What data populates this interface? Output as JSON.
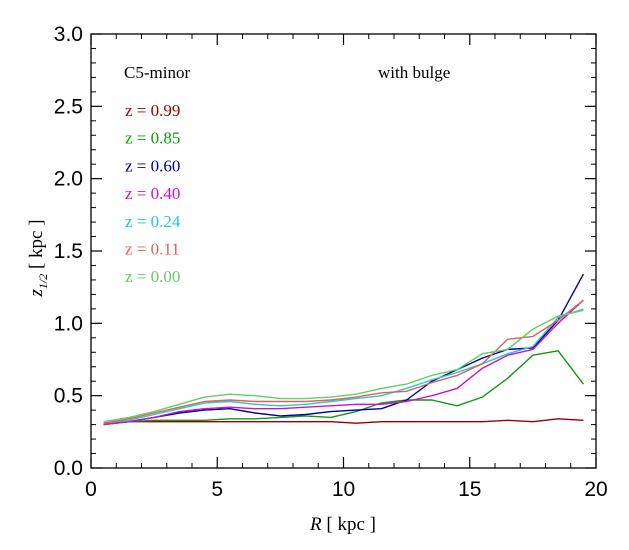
{
  "chart_data": {
    "type": "line",
    "annotations": {
      "left": "C5-minor",
      "right": "with bulge"
    },
    "xlabel": {
      "italic": "R",
      "rest": " [ kpc ]"
    },
    "ylabel": {
      "italic": "z",
      "sub": "1/2",
      "rest": "  [ kpc ]"
    },
    "xlim": [
      0,
      20
    ],
    "ylim": [
      0,
      3
    ],
    "xticks": [
      0,
      5,
      10,
      15,
      20
    ],
    "yticks": [
      0.0,
      0.5,
      1.0,
      1.5,
      2.0,
      2.5,
      3.0
    ],
    "grid": false,
    "legend_placement": "upper-left",
    "x": [
      0.5,
      1.5,
      2.5,
      3.5,
      4.5,
      5.5,
      6.5,
      7.5,
      8.5,
      9.5,
      10.5,
      11.5,
      12.5,
      13.5,
      14.5,
      15.5,
      16.5,
      17.5,
      18.5,
      19.5
    ],
    "series": [
      {
        "label": "z =  0.99",
        "color": "#990000",
        "values": [
          0.31,
          0.32,
          0.32,
          0.32,
          0.32,
          0.32,
          0.32,
          0.32,
          0.32,
          0.32,
          0.31,
          0.32,
          0.32,
          0.32,
          0.32,
          0.32,
          0.33,
          0.32,
          0.34,
          0.33
        ]
      },
      {
        "label": "z =  0.85",
        "color": "#119911",
        "values": [
          0.31,
          0.32,
          0.33,
          0.33,
          0.33,
          0.34,
          0.34,
          0.35,
          0.36,
          0.35,
          0.39,
          0.45,
          0.47,
          0.47,
          0.43,
          0.49,
          0.62,
          0.78,
          0.81,
          0.58
        ]
      },
      {
        "label": "z =  0.60",
        "color": "#000099",
        "values": [
          0.3,
          0.32,
          0.35,
          0.38,
          0.4,
          0.41,
          0.38,
          0.36,
          0.37,
          0.39,
          0.4,
          0.41,
          0.47,
          0.6,
          0.68,
          0.76,
          0.82,
          0.83,
          1.02,
          1.34
        ]
      },
      {
        "label": "z =  0.40",
        "color": "#cc11cc",
        "values": [
          0.3,
          0.32,
          0.35,
          0.39,
          0.41,
          0.42,
          0.41,
          0.41,
          0.42,
          0.43,
          0.44,
          0.44,
          0.46,
          0.5,
          0.55,
          0.69,
          0.78,
          0.82,
          1.0,
          1.16
        ]
      },
      {
        "label": "z =  0.24",
        "color": "#22cccc",
        "values": [
          0.31,
          0.33,
          0.37,
          0.41,
          0.45,
          0.46,
          0.44,
          0.43,
          0.44,
          0.46,
          0.48,
          0.5,
          0.55,
          0.61,
          0.66,
          0.72,
          0.79,
          0.84,
          1.04,
          1.1
        ]
      },
      {
        "label": "z =  0.11",
        "color": "#e06060",
        "values": [
          0.31,
          0.34,
          0.38,
          0.42,
          0.46,
          0.47,
          0.46,
          0.46,
          0.46,
          0.47,
          0.49,
          0.52,
          0.53,
          0.59,
          0.64,
          0.72,
          0.89,
          0.91,
          1.02,
          1.16
        ]
      },
      {
        "label": "z =  0.00",
        "color": "#66cc66",
        "values": [
          0.32,
          0.35,
          0.39,
          0.44,
          0.49,
          0.51,
          0.5,
          0.48,
          0.48,
          0.49,
          0.51,
          0.55,
          0.58,
          0.64,
          0.68,
          0.79,
          0.82,
          0.96,
          1.05,
          1.09
        ]
      }
    ]
  }
}
